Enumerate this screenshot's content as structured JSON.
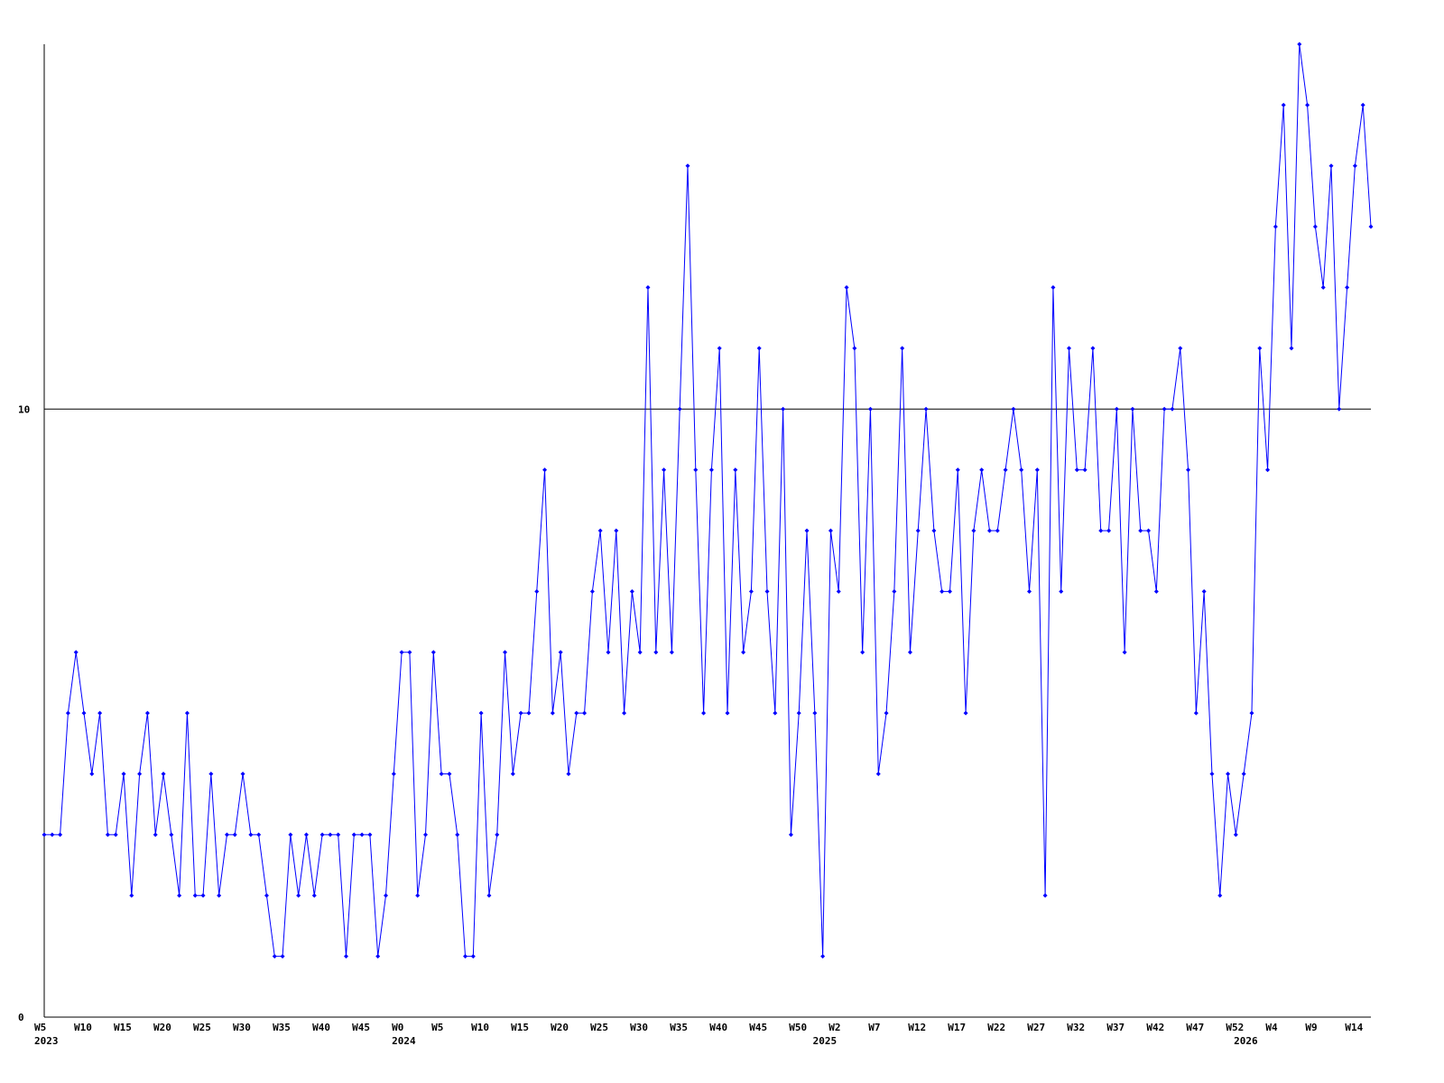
{
  "chart_data": {
    "type": "line",
    "categories": [
      "W5",
      null,
      null,
      null,
      null,
      "W10",
      null,
      null,
      null,
      null,
      "W15",
      null,
      null,
      null,
      null,
      "W20",
      null,
      null,
      null,
      null,
      "W25",
      null,
      null,
      null,
      null,
      "W30",
      null,
      null,
      null,
      null,
      "W35",
      null,
      null,
      null,
      null,
      "W40",
      null,
      null,
      null,
      null,
      "W45",
      null,
      null,
      null,
      null,
      "W0",
      null,
      null,
      null,
      null,
      "W5",
      null,
      null,
      null,
      null,
      "W10",
      null,
      null,
      null,
      null,
      "W15",
      null,
      null,
      null,
      null,
      "W20",
      null,
      null,
      null,
      null,
      "W25",
      null,
      null,
      null,
      null,
      "W30",
      null,
      null,
      null,
      null,
      "W35",
      null,
      null,
      null,
      null,
      "W40",
      null,
      null,
      null,
      null,
      "W45",
      null,
      null,
      null,
      null,
      "W50",
      null,
      null,
      null,
      null,
      "W2",
      null,
      null,
      null,
      null,
      "W7",
      null,
      null,
      null,
      null,
      "W12",
      null,
      null,
      null,
      null,
      "W17",
      null,
      null,
      null,
      null,
      "W22",
      null,
      null,
      null,
      null,
      "W27",
      null,
      null,
      null,
      null,
      "W32",
      null,
      null,
      null,
      null,
      "W37",
      null,
      null,
      null,
      null,
      "W42",
      null,
      null,
      null,
      null,
      "W47",
      null,
      null,
      null,
      null,
      "W52",
      null,
      null,
      null,
      null,
      "W4",
      null,
      null,
      null,
      null,
      "W9",
      null,
      null,
      null,
      null,
      "W14",
      null,
      null
    ],
    "years": [
      "2023",
      null,
      null,
      null,
      null,
      null,
      null,
      null,
      null,
      null,
      null,
      null,
      null,
      null,
      null,
      null,
      null,
      null,
      null,
      null,
      null,
      null,
      null,
      null,
      null,
      null,
      null,
      null,
      null,
      null,
      null,
      null,
      null,
      null,
      null,
      null,
      null,
      null,
      null,
      null,
      null,
      null,
      null,
      null,
      null,
      "2024",
      null,
      null,
      null,
      null,
      null,
      null,
      null,
      null,
      null,
      null,
      null,
      null,
      null,
      null,
      null,
      null,
      null,
      null,
      null,
      null,
      null,
      null,
      null,
      null,
      null,
      null,
      null,
      null,
      null,
      null,
      null,
      null,
      null,
      null,
      null,
      null,
      null,
      null,
      null,
      null,
      null,
      null,
      null,
      null,
      null,
      null,
      null,
      null,
      null,
      null,
      null,
      null,
      "2025",
      null,
      null,
      null,
      null,
      null,
      null,
      null,
      null,
      null,
      null,
      null,
      null,
      null,
      null,
      null,
      null,
      null,
      null,
      null,
      null,
      null,
      null,
      null,
      null,
      null,
      null,
      null,
      null,
      null,
      null,
      null,
      null,
      null,
      null,
      null,
      null,
      null,
      null,
      null,
      null,
      null,
      null,
      null,
      null,
      null,
      null,
      null,
      null,
      null,
      null,
      null,
      null,
      "2026",
      null,
      null,
      null,
      null,
      null,
      null,
      null,
      null,
      null,
      null,
      null,
      null,
      null,
      null,
      null,
      null
    ],
    "series": [
      {
        "color": "#0000ff",
        "values": [
          3,
          3,
          3,
          5,
          6,
          5,
          4,
          5,
          3,
          3,
          4,
          2,
          4,
          5,
          3,
          4,
          3,
          2,
          5,
          2,
          2,
          4,
          2,
          3,
          3,
          4,
          3,
          3,
          2,
          1,
          1,
          3,
          2,
          3,
          2,
          3,
          3,
          3,
          1,
          3,
          3,
          3,
          1,
          2,
          4,
          6,
          6,
          2,
          3,
          6,
          4,
          4,
          3,
          1,
          1,
          5,
          2,
          3,
          6,
          4,
          5,
          5,
          7,
          9,
          5,
          6,
          4,
          5,
          5,
          7,
          8,
          6,
          8,
          5,
          7,
          6,
          12,
          6,
          9,
          6,
          10,
          14,
          9,
          5,
          9,
          11,
          5,
          9,
          6,
          7,
          11,
          7,
          5,
          10,
          3,
          5,
          8,
          5,
          1,
          8,
          7,
          12,
          11,
          6,
          10,
          4,
          5,
          7,
          11,
          6,
          8,
          10,
          8,
          7,
          7,
          9,
          5,
          8,
          9,
          8,
          8,
          9,
          10,
          9,
          7,
          9,
          2,
          12,
          7,
          11,
          9,
          9,
          11,
          8,
          8,
          10,
          6,
          10,
          8,
          8,
          7,
          10,
          10,
          11,
          9,
          5,
          7,
          4,
          2,
          4,
          3,
          4,
          5,
          11,
          9,
          13,
          15,
          11,
          16,
          15,
          13,
          12,
          14,
          10,
          12,
          14,
          15,
          13
        ]
      }
    ],
    "ylim": [
      0,
      16
    ],
    "yticks": [
      0,
      10
    ],
    "grid": true
  }
}
